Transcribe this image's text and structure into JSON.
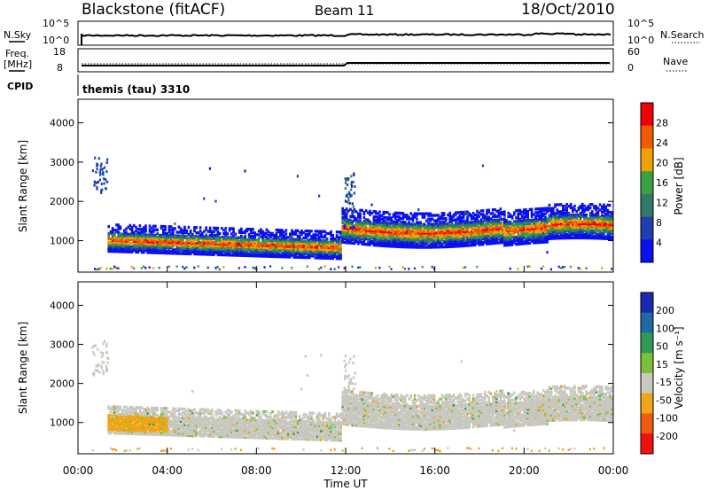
{
  "header": {
    "station": "Blackstone (fitACF)",
    "beam": "Beam 11",
    "date": "18/Oct/2010"
  },
  "nsky_panel": {
    "left_label": "N.Sky",
    "right_label": "N.Search",
    "ticks_left": [
      "10^5",
      "10^0"
    ],
    "ticks_right": [
      "10^5",
      "10^0"
    ]
  },
  "freq_panel": {
    "left_label_1": "Freq.",
    "left_label_2": "[MHz]",
    "right_label": "Nave",
    "ticks_left": [
      "18",
      "8"
    ],
    "ticks_right": [
      "60",
      "0"
    ]
  },
  "cpid_panel": {
    "left_label": "CPID",
    "program": "themis (tau) 3310"
  },
  "chart_data": [
    {
      "type": "heatmap",
      "name": "power",
      "ylabel": "Slant Range [km]",
      "ylim": [
        200,
        4600
      ],
      "yticks": [
        1000,
        2000,
        3000,
        4000
      ],
      "colorbar": {
        "label": "Power [dB]",
        "ticks": [
          "4",
          "8",
          "12",
          "16",
          "20",
          "24",
          "28"
        ],
        "colors": [
          "#0a10f0",
          "#1f3fb0",
          "#2f7a6a",
          "#3aa040",
          "#f0a000",
          "#f05a00",
          "#f00000"
        ]
      }
    },
    {
      "type": "heatmap",
      "name": "velocity",
      "ylabel": "Slant Range [km]",
      "ylim": [
        200,
        4600
      ],
      "yticks": [
        1000,
        2000,
        3000,
        4000
      ],
      "colorbar": {
        "label": "Velocity [m s⁻¹]",
        "ticks": [
          "200",
          "100",
          "50",
          "15",
          "-15",
          "-50",
          "-100",
          "-200"
        ],
        "colors": [
          "#1a2ab0",
          "#1f6aa0",
          "#2f9a58",
          "#7cc03a",
          "#c8c8c0",
          "#f0a418",
          "#f05a10",
          "#f01010"
        ]
      }
    }
  ],
  "time_axis": {
    "label": "Time UT",
    "ticks": [
      "00:00",
      "04:00",
      "08:00",
      "12:00",
      "16:00",
      "20:00",
      "00:00"
    ]
  },
  "colors": {
    "frame": "#000000",
    "background": "#ffffff"
  }
}
